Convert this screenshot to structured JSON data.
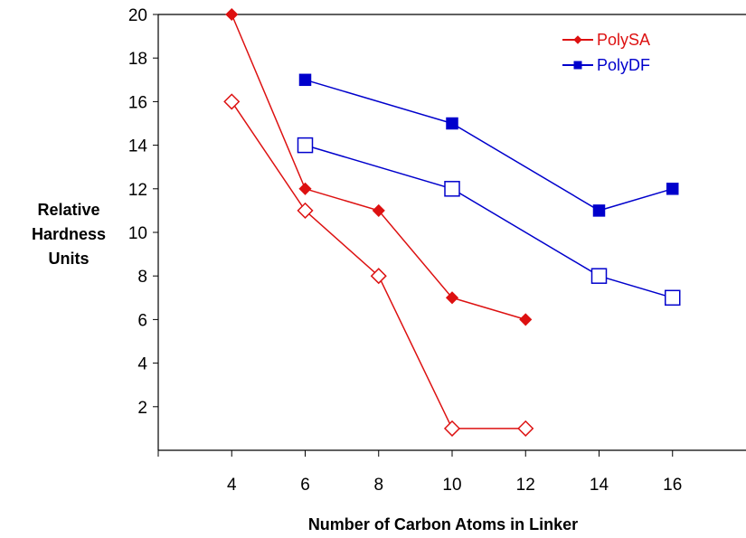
{
  "chart_data": {
    "type": "line",
    "title": "",
    "xlabel": "Number of Carbon Atoms in Linker",
    "ylabel": [
      "Relative",
      "Hardness",
      "Units"
    ],
    "xlim": [
      2,
      18
    ],
    "ylim": [
      0,
      20
    ],
    "xticks": [
      4,
      6,
      8,
      10,
      12,
      14,
      16
    ],
    "yticks": [
      2,
      4,
      6,
      8,
      10,
      12,
      14,
      16,
      18,
      20
    ],
    "grid": false,
    "legend_position": "top-right",
    "series": [
      {
        "name": "PolySA",
        "color": "#dd1111",
        "marker": "diamond",
        "filled": true,
        "x": [
          4,
          6,
          8,
          10,
          12
        ],
        "y": [
          20,
          12,
          11,
          7,
          6
        ]
      },
      {
        "name": "PolyDF",
        "color": "#0000cc",
        "marker": "square",
        "filled": true,
        "x": [
          6,
          10,
          14,
          16
        ],
        "y": [
          17,
          15,
          11,
          12
        ]
      },
      {
        "color": "#dd1111",
        "marker": "diamond",
        "filled": false,
        "in_legend": false,
        "x": [
          4,
          6,
          8,
          10,
          12
        ],
        "y": [
          16,
          11,
          8,
          1,
          1
        ]
      },
      {
        "color": "#0000cc",
        "marker": "square",
        "filled": false,
        "in_legend": false,
        "x": [
          6,
          10,
          14,
          16
        ],
        "y": [
          14,
          12,
          8,
          7
        ]
      }
    ]
  }
}
